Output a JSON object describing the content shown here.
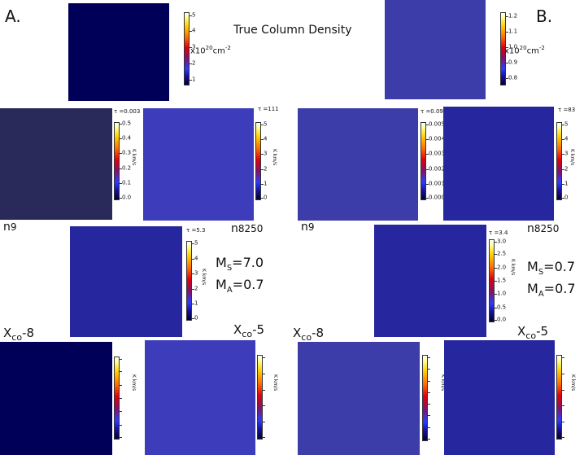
{
  "header": {
    "label_a": "A.",
    "label_b": "B.",
    "title": "True  Column Density"
  },
  "colors": {
    "background": "#ffffff",
    "text": "#111111"
  },
  "units": {
    "col_density": "x10",
    "col_density_exp": "20",
    "col_density_tail": "cm",
    "col_density_tail_exp": "-2",
    "intensity": "K km/s"
  },
  "panels": {
    "a_true": {
      "ticks": [
        "5",
        "4",
        "3",
        "2",
        "1"
      ]
    },
    "b_true": {
      "ticks": [
        "1.2",
        "1.1",
        "1.0",
        "0.9",
        "0.8"
      ]
    },
    "a_n9": {
      "tau": "τ =0.003",
      "ticks": [
        "0.5",
        "0.4",
        "0.3",
        "0.2",
        "0.1",
        "0.0"
      ]
    },
    "a_n8250": {
      "tau": "τ =111",
      "ticks": [
        "5",
        "4",
        "3",
        "2",
        "1",
        "0"
      ]
    },
    "b_n9": {
      "tau": "τ =0.09",
      "ticks": [
        "0.005",
        "0.004",
        "0.003",
        "0.002",
        "0.001",
        "0.000"
      ]
    },
    "b_n8250": {
      "tau": "τ =83",
      "ticks": [
        "5",
        "4",
        "3",
        "2",
        "1",
        "0"
      ]
    },
    "a_mid": {
      "tau": "τ =5.3",
      "ticks": [
        "5",
        "4",
        "3",
        "2",
        "1",
        "0"
      ]
    },
    "b_mid": {
      "tau": "τ =3.4",
      "ticks": [
        "3.0",
        "2.5",
        "2.0",
        "1.5",
        "1.0",
        "0.5",
        "0.0"
      ]
    },
    "a_x8": {
      "tau": "τ =0.005",
      "ticks": [
        "3.0",
        "2.5",
        "2.0",
        "1.5",
        "1.0",
        "0.5",
        "0.0"
      ]
    },
    "a_x5": {
      "tau": "τ =90",
      "ticks": [
        "5",
        "4",
        "3",
        "2",
        "1",
        "0"
      ]
    },
    "b_x8": {
      "tau": "τ =0.125",
      "ticks": [
        "0.14",
        "0.12",
        "0.10",
        "0.08",
        "0.06",
        "0.04",
        "0.02",
        "0.00"
      ]
    },
    "b_x5": {
      "tau": "τ =72",
      "ticks": [
        "5",
        "4",
        "3",
        "2",
        "1",
        "0"
      ]
    }
  },
  "labels": {
    "n_main": "n",
    "n9_sub": "9",
    "n8250_sub": "8250",
    "xco_main": "X",
    "xco_sub": "co",
    "xco8_suffix": "-8",
    "xco5_suffix": "-5",
    "m_main": "M",
    "ms_sub": "S",
    "ma_sub": "A",
    "a_ms_value": "=7.0",
    "a_ma_value": "=0.7",
    "b_ms_value": "=0.7",
    "b_ma_value": "=0.7"
  }
}
